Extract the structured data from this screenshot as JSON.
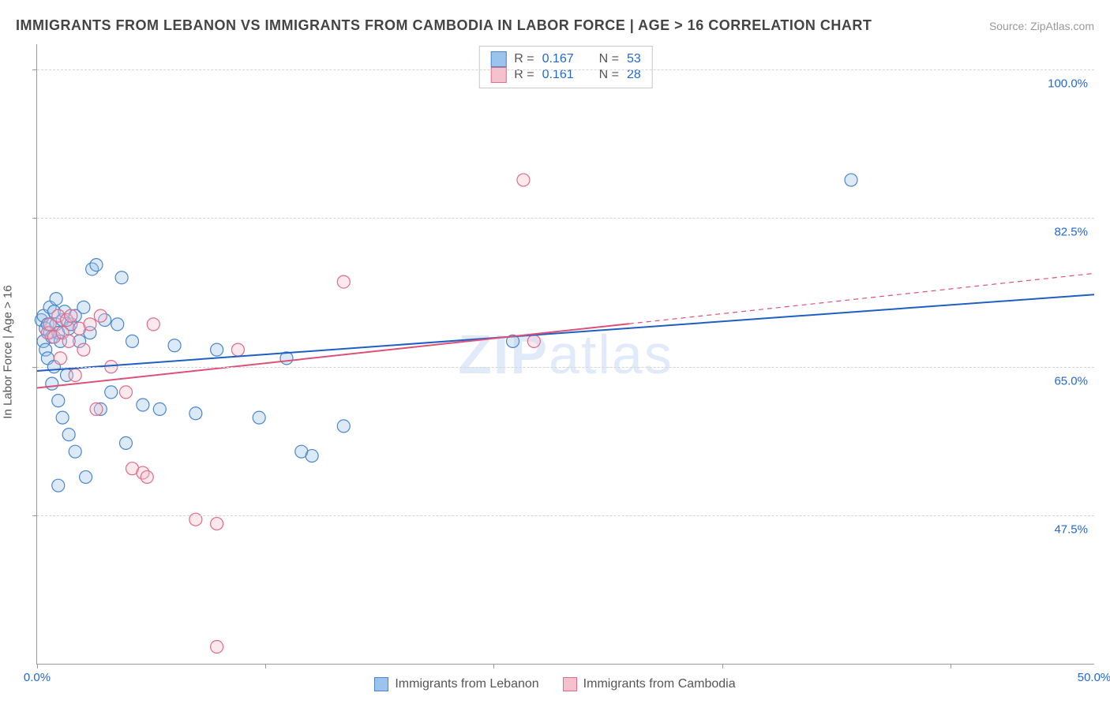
{
  "title": "IMMIGRANTS FROM LEBANON VS IMMIGRANTS FROM CAMBODIA IN LABOR FORCE | AGE > 16 CORRELATION CHART",
  "source_label": "Source:",
  "source_name": "ZipAtlas.com",
  "ylabel": "In Labor Force | Age > 16",
  "watermark_bold": "ZIP",
  "watermark_rest": "atlas",
  "chart": {
    "type": "scatter",
    "xlim": [
      0,
      50
    ],
    "ylim": [
      30,
      103
    ],
    "xticks": [
      0,
      10.8,
      21.6,
      32.4,
      43.2
    ],
    "xtick_labels": {
      "0": "0.0%",
      "50": "50.0%"
    },
    "yticks_major": [
      47.5,
      65.0,
      82.5,
      100.0
    ],
    "ytick_labels": [
      "47.5%",
      "65.0%",
      "82.5%",
      "100.0%"
    ],
    "ytick_label_color": "#2268d6",
    "xtick_label_color": "#2268d6",
    "grid_color": "#d5d5d5",
    "background_color": "#ffffff",
    "marker_radius": 8,
    "marker_fill_opacity": 0.35,
    "marker_stroke_width": 1.2,
    "line_width": 2,
    "series": [
      {
        "name": "Immigrants from Lebanon",
        "color_fill": "#9cc3ec",
        "color_stroke": "#4a86d0",
        "line_color": "#1f5fc4",
        "r": "0.167",
        "n": "53",
        "regression": {
          "x1": 0,
          "y1": 64.5,
          "x2": 50,
          "y2": 73.5,
          "dashed_from_x": null
        },
        "points": [
          [
            0.2,
            70.5
          ],
          [
            0.3,
            68
          ],
          [
            0.3,
            71
          ],
          [
            0.4,
            69.5
          ],
          [
            0.4,
            67
          ],
          [
            0.5,
            70
          ],
          [
            0.5,
            66
          ],
          [
            0.6,
            69
          ],
          [
            0.6,
            72
          ],
          [
            0.7,
            68.5
          ],
          [
            0.7,
            63
          ],
          [
            0.8,
            71.5
          ],
          [
            0.8,
            65
          ],
          [
            0.9,
            70
          ],
          [
            1.0,
            69
          ],
          [
            1.0,
            61
          ],
          [
            1.1,
            68
          ],
          [
            1.2,
            70.5
          ],
          [
            1.2,
            59
          ],
          [
            1.3,
            71.5
          ],
          [
            1.4,
            64
          ],
          [
            1.5,
            69.5
          ],
          [
            1.5,
            57
          ],
          [
            1.6,
            70
          ],
          [
            1.8,
            71
          ],
          [
            1.8,
            55
          ],
          [
            2.0,
            68
          ],
          [
            2.2,
            72
          ],
          [
            2.3,
            52
          ],
          [
            2.5,
            69
          ],
          [
            2.6,
            76.5
          ],
          [
            2.8,
            77
          ],
          [
            3.0,
            60
          ],
          [
            3.2,
            70.5
          ],
          [
            3.5,
            62
          ],
          [
            3.8,
            70
          ],
          [
            4.0,
            75.5
          ],
          [
            4.2,
            56
          ],
          [
            4.5,
            68
          ],
          [
            5.0,
            60.5
          ],
          [
            5.8,
            60
          ],
          [
            6.5,
            67.5
          ],
          [
            7.5,
            59.5
          ],
          [
            8.5,
            67
          ],
          [
            10.5,
            59
          ],
          [
            11.8,
            66
          ],
          [
            12.5,
            55
          ],
          [
            13.0,
            54.5
          ],
          [
            14.5,
            58
          ],
          [
            22.5,
            68
          ],
          [
            38.5,
            87
          ],
          [
            1.0,
            51
          ],
          [
            0.9,
            73
          ]
        ]
      },
      {
        "name": "Immigrants from Cambodia",
        "color_fill": "#f5c1cd",
        "color_stroke": "#e06b8a",
        "line_color": "#dc5177",
        "r": "0.161",
        "n": "28",
        "regression": {
          "x1": 0,
          "y1": 62.5,
          "x2": 50,
          "y2": 76.0,
          "dashed_from_x": 28
        },
        "points": [
          [
            0.5,
            69
          ],
          [
            0.6,
            70
          ],
          [
            0.8,
            68.5
          ],
          [
            1.0,
            71
          ],
          [
            1.1,
            66
          ],
          [
            1.2,
            69
          ],
          [
            1.4,
            70.5
          ],
          [
            1.5,
            68
          ],
          [
            1.6,
            71
          ],
          [
            1.8,
            64
          ],
          [
            2.0,
            69.5
          ],
          [
            2.2,
            67
          ],
          [
            2.5,
            70
          ],
          [
            2.8,
            60
          ],
          [
            3.0,
            71
          ],
          [
            3.5,
            65
          ],
          [
            4.2,
            62
          ],
          [
            4.5,
            53
          ],
          [
            5.0,
            52.5
          ],
          [
            5.2,
            52
          ],
          [
            5.5,
            70
          ],
          [
            7.5,
            47
          ],
          [
            8.5,
            46.5
          ],
          [
            8.5,
            32
          ],
          [
            9.5,
            67
          ],
          [
            14.5,
            75
          ],
          [
            23.0,
            87
          ],
          [
            23.5,
            68
          ]
        ]
      }
    ]
  },
  "bottom_legend": [
    {
      "label": "Immigrants from Lebanon",
      "fill": "#9cc3ec",
      "stroke": "#4a86d0"
    },
    {
      "label": "Immigrants from Cambodia",
      "fill": "#f5c1cd",
      "stroke": "#e06b8a"
    }
  ],
  "top_legend_prefix_r": "R  =",
  "top_legend_prefix_n": "N  ="
}
